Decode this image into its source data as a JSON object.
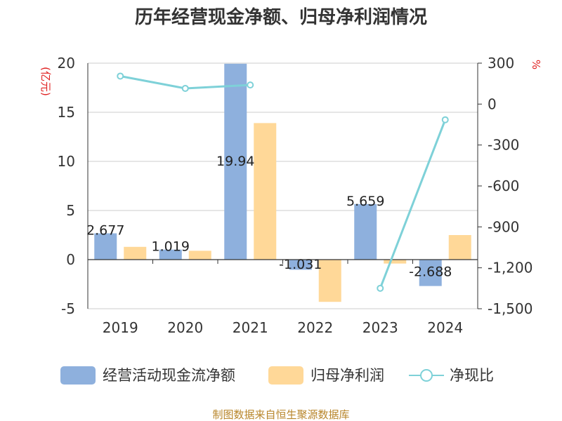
{
  "chart_data": {
    "type": "bar",
    "title": "历年经营现金净额、归母净利润情况",
    "categories": [
      "2019",
      "2020",
      "2021",
      "2022",
      "2023",
      "2024"
    ],
    "y_left": {
      "unit": "(亿元)",
      "ylim": [
        -5,
        20
      ],
      "ticks": [
        20,
        15,
        10,
        5,
        0,
        -5
      ]
    },
    "y_right": {
      "unit": "%",
      "ylim": [
        -1500,
        300
      ],
      "ticks": [
        "300",
        "0",
        "-300",
        "-600",
        "-900",
        "-1,200",
        "-1,500"
      ],
      "tick_values": [
        300,
        0,
        -300,
        -600,
        -900,
        -1200,
        -1500
      ]
    },
    "series": [
      {
        "name": "经营活动现金流净额",
        "type": "bar",
        "axis": "left",
        "color": "#8eb0dd",
        "values": [
          2.677,
          1.019,
          19.94,
          -1.031,
          5.659,
          -2.688
        ],
        "labels": [
          "2.677",
          "1.019",
          "19.94",
          "-1.031",
          "5.659",
          "-2.688"
        ]
      },
      {
        "name": "归母净利润",
        "type": "bar",
        "axis": "left",
        "color": "#ffd898",
        "values": [
          1.3,
          0.9,
          13.9,
          -4.3,
          -0.4,
          2.5
        ]
      },
      {
        "name": "净现比",
        "type": "line",
        "axis": "right",
        "color": "#7ed1d8",
        "values": [
          205,
          115,
          140,
          null,
          -1350,
          -115
        ]
      }
    ],
    "grid": true,
    "legend": "bottom",
    "source": "制图数据来自恒生聚源数据库"
  }
}
